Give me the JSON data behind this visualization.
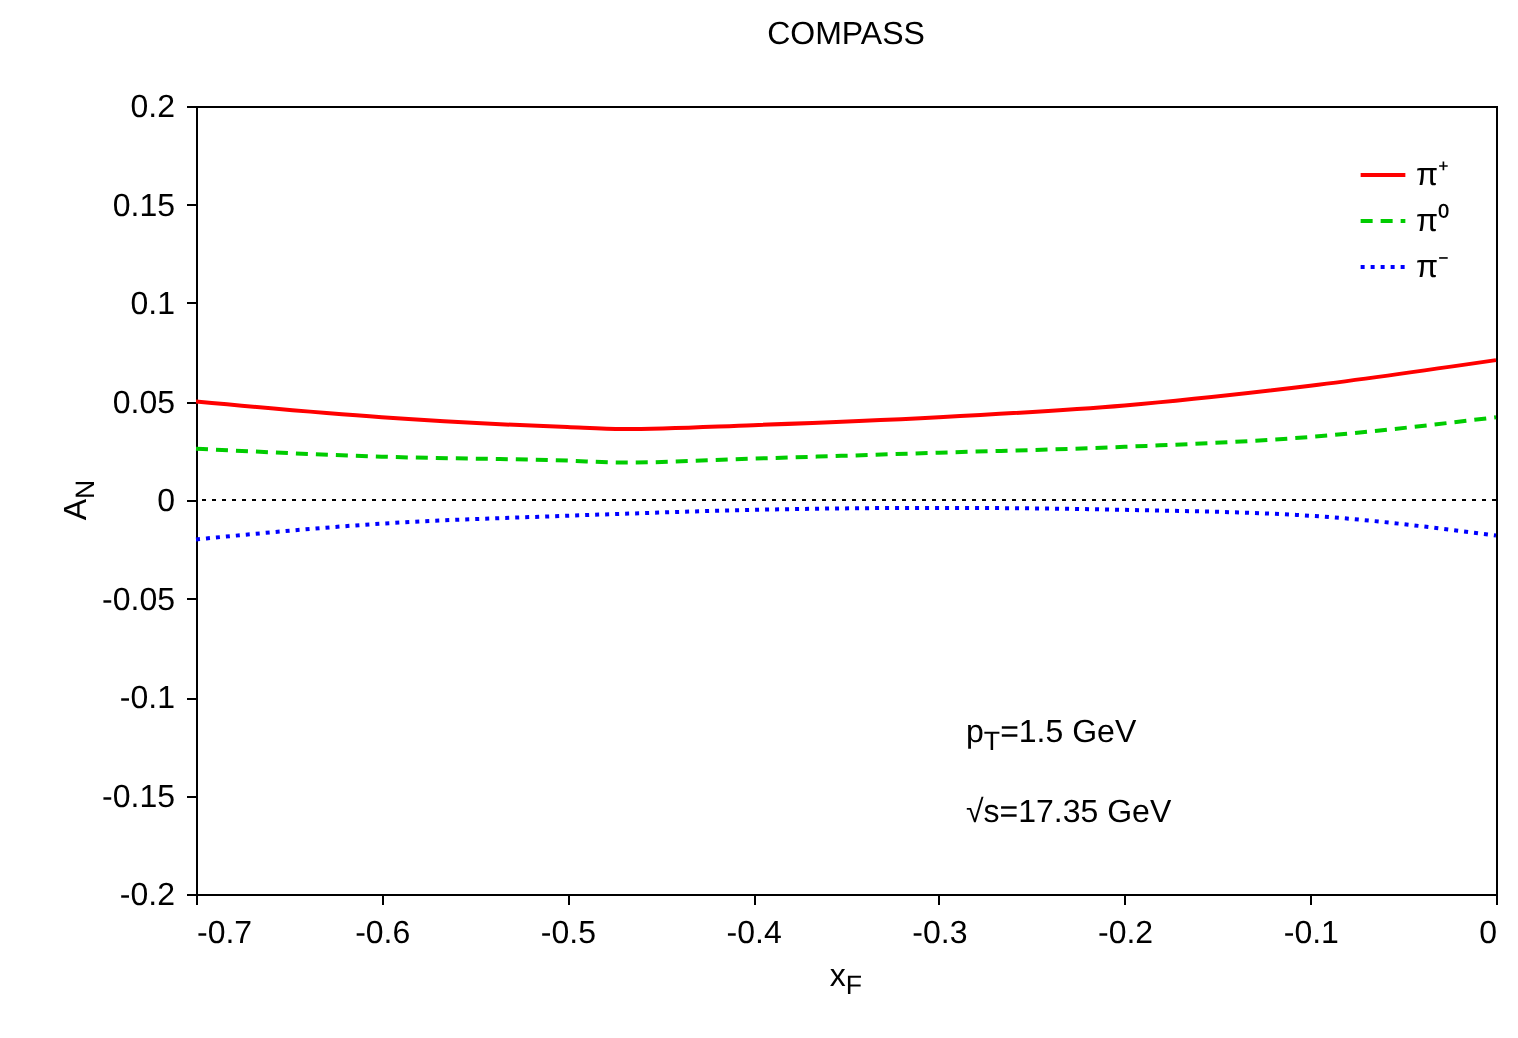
{
  "chart_data": {
    "type": "line",
    "title": "COMPASS",
    "xlabel": "x$_{F}$",
    "ylabel": "A$_{N}$",
    "x": [
      -0.7,
      -0.6,
      -0.5,
      -0.47,
      -0.4,
      -0.3,
      -0.2,
      -0.1,
      0
    ],
    "series": [
      {
        "name": "π⁺",
        "color": "#ff0000",
        "line_style": "solid",
        "values": [
          0.05,
          0.042,
          0.037,
          0.036,
          0.038,
          0.042,
          0.048,
          0.058,
          0.071
        ]
      },
      {
        "name": "π⁰",
        "color": "#00cc00",
        "line_style": "dashed",
        "values": [
          0.026,
          0.022,
          0.02,
          0.019,
          0.021,
          0.024,
          0.027,
          0.032,
          0.042
        ]
      },
      {
        "name": "π⁻",
        "color": "#0000ff",
        "line_style": "dotted",
        "values": [
          -0.02,
          -0.012,
          -0.008,
          -0.007,
          -0.005,
          -0.004,
          -0.005,
          -0.008,
          -0.018
        ]
      }
    ],
    "xlim": [
      -0.7,
      0
    ],
    "xticks": [
      {
        "value": -0.7,
        "label": "-0.7"
      },
      {
        "value": -0.6,
        "label": "-0.6"
      },
      {
        "value": -0.5,
        "label": "-0.5"
      },
      {
        "value": -0.4,
        "label": "-0.4"
      },
      {
        "value": -0.3,
        "label": "-0.3"
      },
      {
        "value": -0.2,
        "label": "-0.2"
      },
      {
        "value": -0.1,
        "label": "-0.1"
      },
      {
        "value": 0,
        "label": "0"
      }
    ],
    "ylim": [
      -0.2,
      0.2
    ],
    "yticks": [
      {
        "value": -0.2,
        "label": "-0.2"
      },
      {
        "value": -0.15,
        "label": "-0.15"
      },
      {
        "value": -0.1,
        "label": "-0.1"
      },
      {
        "value": -0.05,
        "label": "-0.05"
      },
      {
        "value": 0,
        "label": "0"
      },
      {
        "value": 0.05,
        "label": "0.05"
      },
      {
        "value": 0.1,
        "label": "0.1"
      },
      {
        "value": 0.15,
        "label": "0.15"
      },
      {
        "value": 0.2,
        "label": "0.2"
      }
    ],
    "ref_lines": [
      {
        "axis": "y",
        "value": 0,
        "color": "#000000",
        "line_style": "dotted"
      }
    ],
    "annotations": [
      "p$_{T}$=1.5 GeV",
      "√s=17.35 GeV"
    ],
    "legend": "top right",
    "grid": false,
    "marker": "none"
  }
}
